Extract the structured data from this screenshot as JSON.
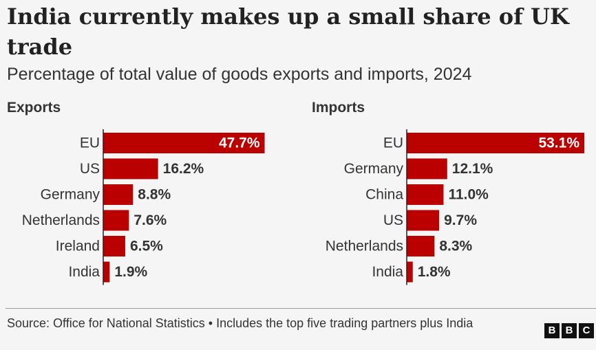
{
  "title": "India currently makes up a small share of UK trade",
  "subtitle": "Percentage of total value of goods exports and imports, 2024",
  "source": "Source: Office for National Statistics • Includes the top five trading partners plus India",
  "logo": [
    "B",
    "B",
    "C"
  ],
  "colors": {
    "bar": "#bb0000",
    "background": "#f5f5f5"
  },
  "chart_data": [
    {
      "type": "bar",
      "orientation": "horizontal",
      "title": "Exports",
      "categories": [
        "EU",
        "US",
        "Germany",
        "Netherlands",
        "Ireland",
        "India"
      ],
      "values": [
        47.7,
        16.2,
        8.8,
        7.6,
        6.5,
        1.9
      ],
      "value_labels": [
        "47.7%",
        "16.2%",
        "8.8%",
        "7.6%",
        "6.5%",
        "1.9%"
      ],
      "unit": "%",
      "xlim": [
        0,
        48
      ],
      "grid": false
    },
    {
      "type": "bar",
      "orientation": "horizontal",
      "title": "Imports",
      "categories": [
        "EU",
        "Germany",
        "China",
        "US",
        "Netherlands",
        "India"
      ],
      "values": [
        53.1,
        12.1,
        11.0,
        9.7,
        8.3,
        1.8
      ],
      "value_labels": [
        "53.1%",
        "12.1%",
        "11.0%",
        "9.7%",
        "8.3%",
        "1.8%"
      ],
      "unit": "%",
      "xlim": [
        0,
        53.1
      ],
      "grid": false
    }
  ]
}
